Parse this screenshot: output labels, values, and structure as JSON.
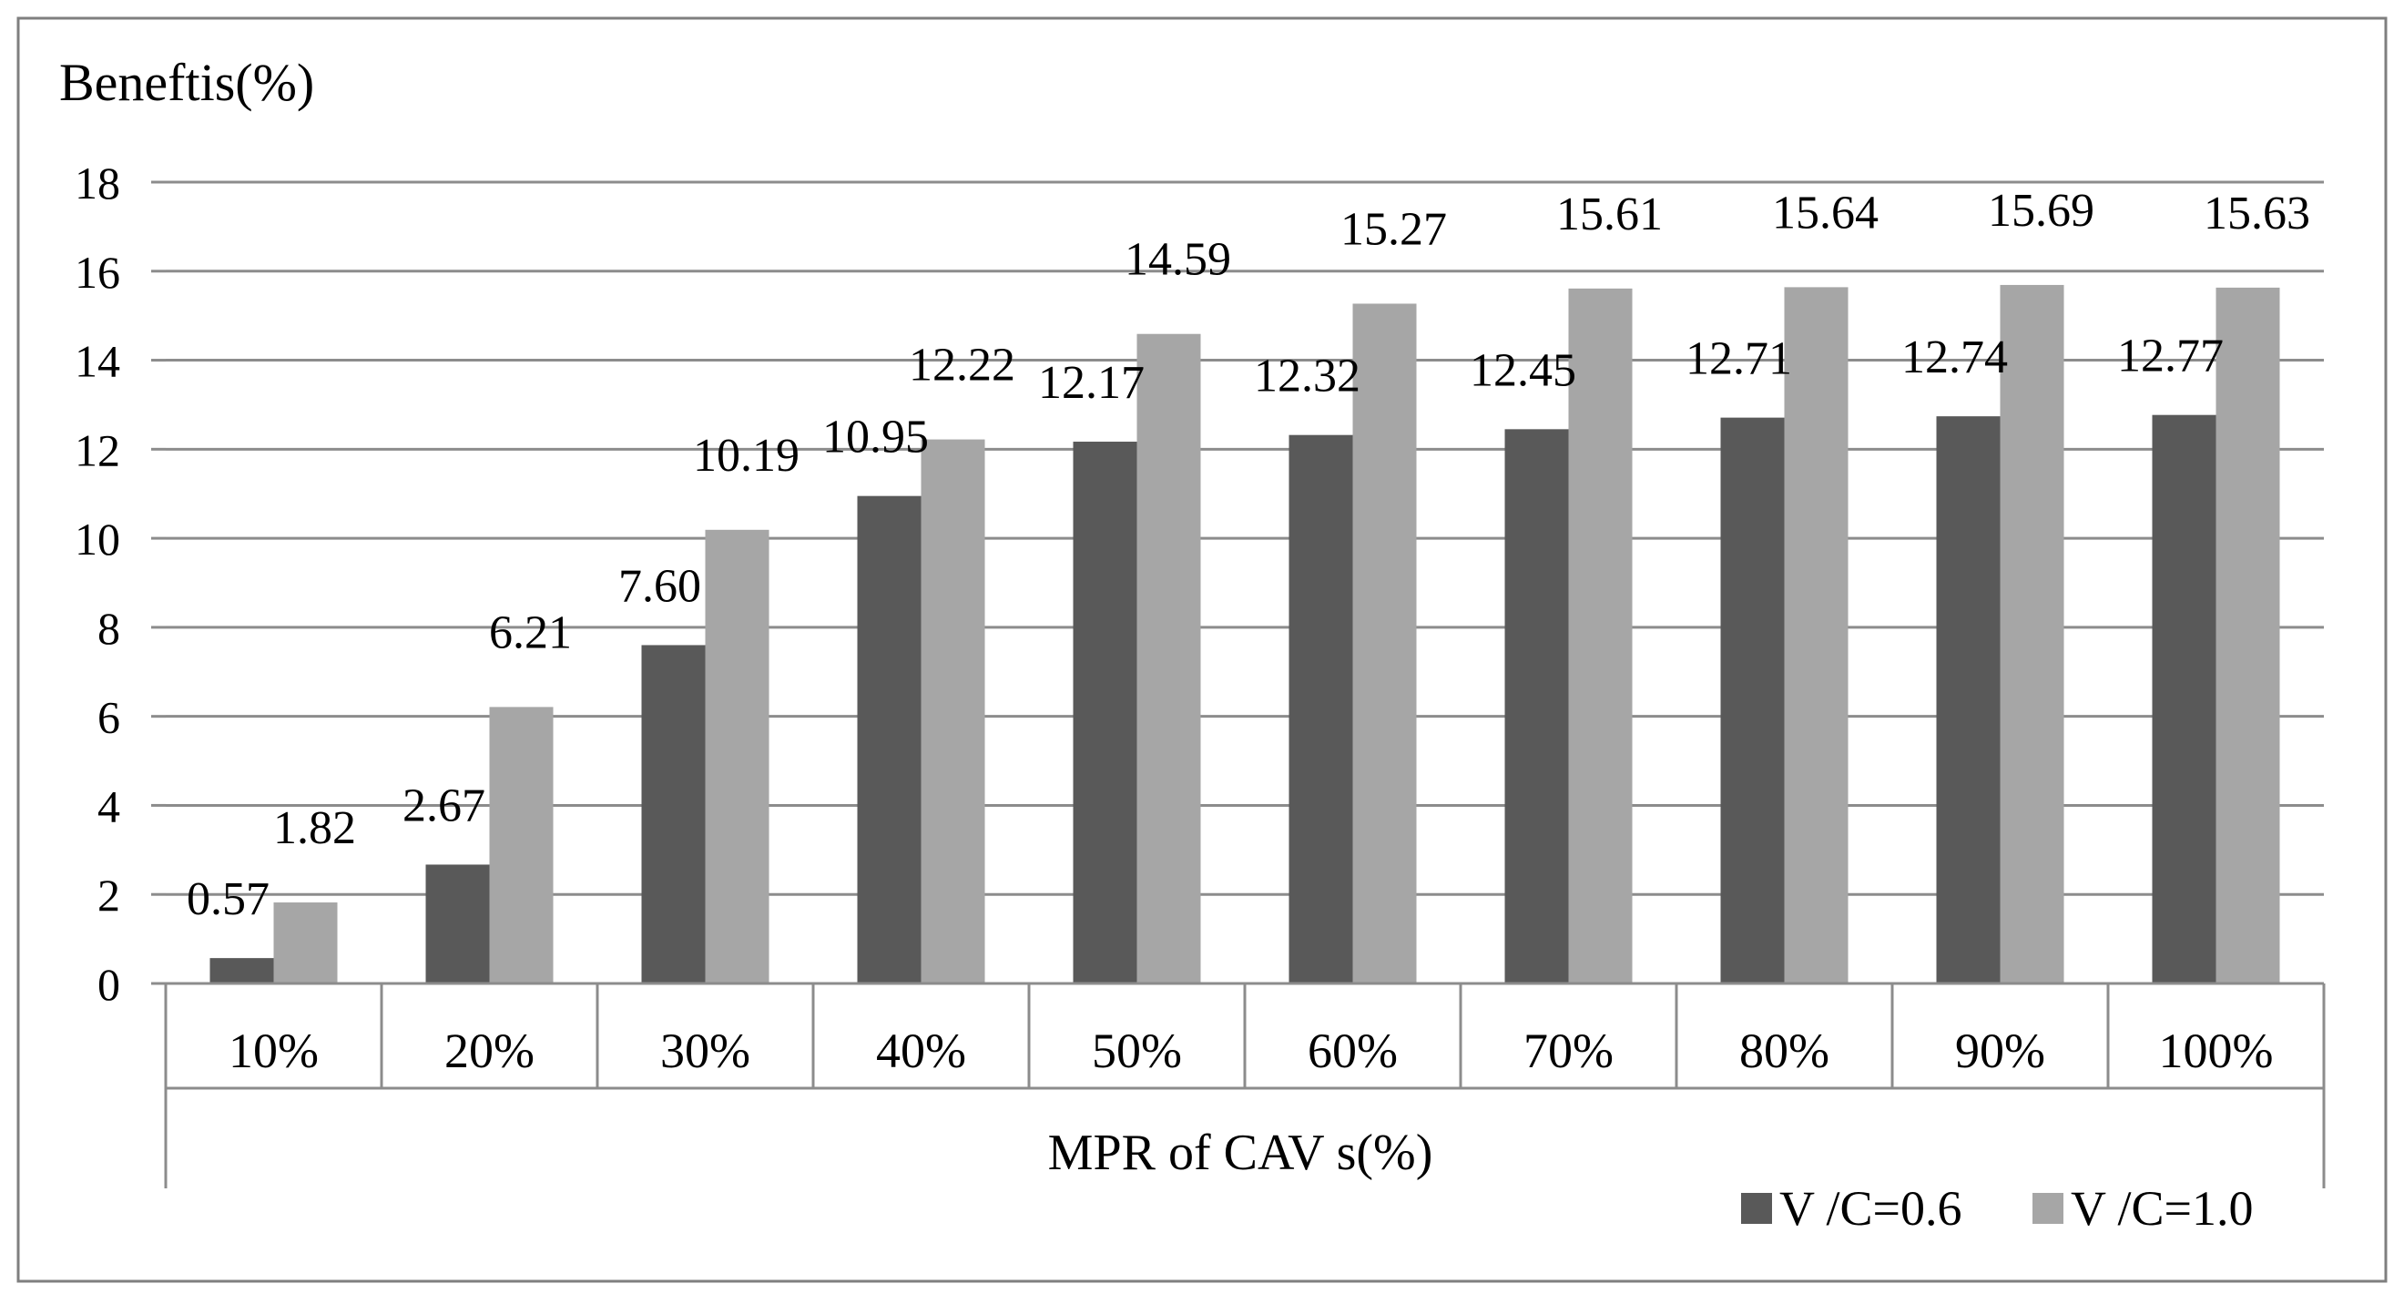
{
  "chart_data": {
    "type": "bar",
    "ylabel": "Beneftis(%)",
    "xlabel": "MPR of CAV s(%)",
    "categories": [
      "10%",
      "20%",
      "30%",
      "40%",
      "50%",
      "60%",
      "70%",
      "80%",
      "90%",
      "100%"
    ],
    "series": [
      {
        "name": "V /C=0.6",
        "color": "#595959",
        "values": [
          0.57,
          2.67,
          7.6,
          10.95,
          12.17,
          12.32,
          12.45,
          12.71,
          12.74,
          12.77
        ],
        "labels": [
          "0.57",
          "2.67",
          "7.60",
          "10.95",
          "12.17",
          "12.32",
          "12.45",
          "12.71",
          "12.74",
          "12.77"
        ]
      },
      {
        "name": "V /C=1.0",
        "color": "#a6a6a6",
        "values": [
          1.82,
          6.21,
          10.19,
          12.22,
          14.59,
          15.27,
          15.61,
          15.64,
          15.69,
          15.63
        ],
        "labels": [
          "1.82",
          "6.21",
          "10.19",
          "12.22",
          "14.59",
          "15.27",
          "15.61",
          "15.64",
          "15.69",
          "15.63"
        ]
      }
    ],
    "ylim": [
      0,
      18
    ],
    "yticks": [
      "0",
      "2",
      "4",
      "6",
      "8",
      "10",
      "12",
      "14",
      "16",
      "18"
    ],
    "grid": true,
    "legend_position": "bottom-right"
  }
}
